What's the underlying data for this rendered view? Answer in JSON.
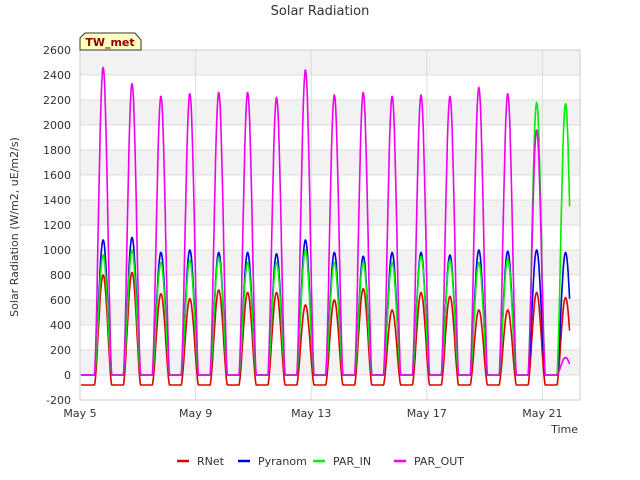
{
  "chart_data": {
    "type": "line",
    "title": "Solar Radiation",
    "xlabel": "Time",
    "ylabel": "Solar Radiation (W/m2, uE/m2/s)",
    "badge": "TW_met",
    "xlim": [
      5.0,
      22.3
    ],
    "ylim": [
      -200,
      2600
    ],
    "yticks": [
      -200,
      0,
      200,
      400,
      600,
      800,
      1000,
      1200,
      1400,
      1600,
      1800,
      2000,
      2200,
      2400,
      2600
    ],
    "xticks": [
      {
        "value": 5,
        "label": "May 5"
      },
      {
        "value": 9,
        "label": "May 9"
      },
      {
        "value": 13,
        "label": "May 13"
      },
      {
        "value": 17,
        "label": "May 17"
      },
      {
        "value": 21,
        "label": "May 21"
      }
    ],
    "grid": true,
    "legend_position": "bottom",
    "day_centers": [
      5.8,
      6.8,
      7.8,
      8.8,
      9.8,
      10.8,
      11.8,
      12.8,
      13.8,
      14.8,
      15.8,
      16.8,
      17.8,
      18.8,
      19.8,
      20.8,
      21.8
    ],
    "series": [
      {
        "name": "RNet",
        "color": "#dd0000",
        "night": -80,
        "daily_peak": [
          800,
          820,
          650,
          610,
          680,
          660,
          660,
          560,
          600,
          690,
          520,
          660,
          630,
          520,
          520,
          660,
          620
        ]
      },
      {
        "name": "Pyranom",
        "color": "#0000dd",
        "night": 0,
        "daily_peak": [
          1080,
          1100,
          980,
          1000,
          980,
          980,
          970,
          1080,
          980,
          950,
          980,
          980,
          960,
          1000,
          990,
          1000,
          980
        ]
      },
      {
        "name": "PAR_IN",
        "color": "#00ee00",
        "night": 0,
        "daily_peak": [
          960,
          1000,
          900,
          920,
          940,
          900,
          900,
          1000,
          900,
          900,
          900,
          950,
          920,
          900,
          930,
          2180,
          2170
        ]
      },
      {
        "name": "PAR_OUT",
        "color": "#ee00ee",
        "night": 0,
        "daily_peak": [
          2460,
          2330,
          2230,
          2250,
          2260,
          2260,
          2220,
          2440,
          2240,
          2260,
          2230,
          2240,
          2230,
          2300,
          2250,
          1960,
          140
        ]
      }
    ]
  }
}
